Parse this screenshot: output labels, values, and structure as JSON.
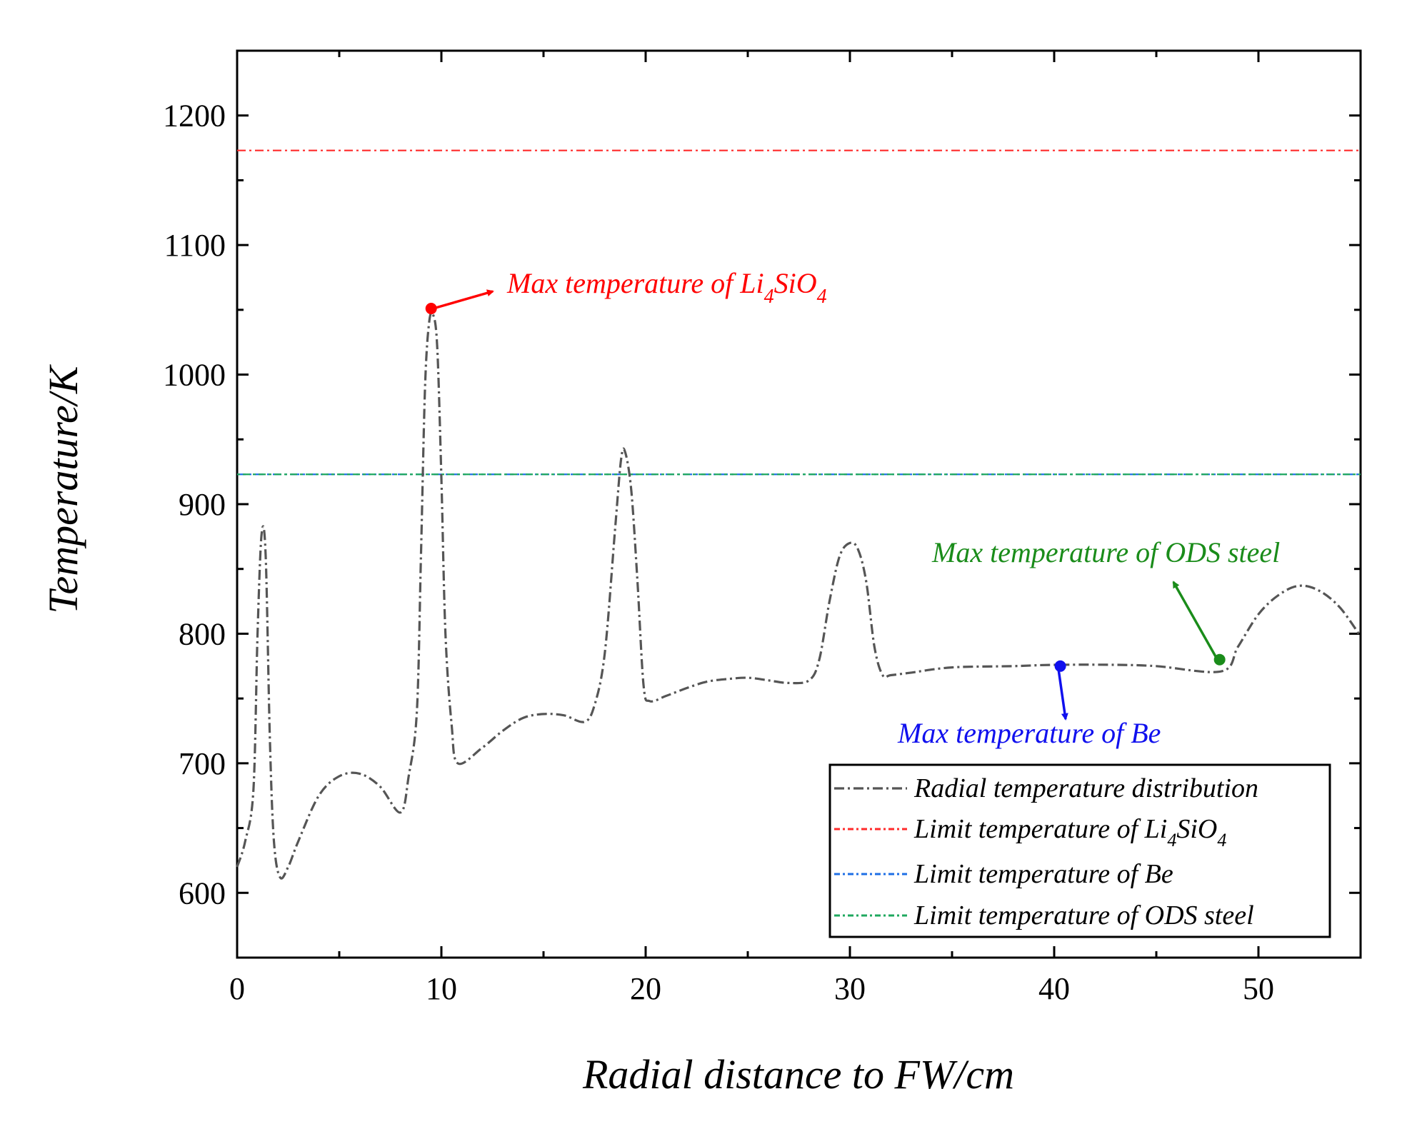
{
  "chart_data": {
    "type": "line",
    "xlabel": "Radial distance to FW/cm",
    "ylabel": "Temperature/K",
    "xlim": [
      0,
      55
    ],
    "ylim": [
      550,
      1250
    ],
    "xticks": [
      0,
      10,
      20,
      30,
      40,
      50
    ],
    "yticks": [
      600,
      700,
      800,
      900,
      1000,
      1100,
      1200
    ],
    "grid": false,
    "legend_position": "bottom-right",
    "series": [
      {
        "name": "Radial temperature distribution",
        "color": "#555555",
        "style": "dash-dot",
        "x": [
          0,
          0.4,
          0.8,
          1.0,
          1.2,
          1.4,
          1.6,
          1.8,
          2.1,
          2.5,
          3,
          4,
          5,
          6,
          7,
          8,
          8.4,
          8.8,
          9.0,
          9.2,
          9.4,
          9.6,
          9.8,
          10.0,
          10.2,
          10.5,
          10.8,
          12,
          13,
          14,
          15,
          16,
          17,
          17.5,
          18,
          18.5,
          18.8,
          19.0,
          19.3,
          19.6,
          19.9,
          20.2,
          21,
          22,
          23,
          24,
          25,
          26,
          27,
          28,
          28.5,
          29,
          29.5,
          30,
          30.4,
          30.8,
          31.2,
          31.6,
          32,
          33,
          35,
          38,
          40,
          43,
          45,
          48.2,
          49,
          50,
          51,
          52,
          53,
          54,
          55
        ],
        "values": [
          620,
          640,
          680,
          800,
          877,
          860,
          720,
          640,
          612,
          620,
          640,
          675,
          690,
          692,
          682,
          662,
          690,
          740,
          860,
          990,
          1040,
          1046,
          1020,
          920,
          800,
          730,
          700,
          712,
          725,
          735,
          738,
          737,
          732,
          745,
          785,
          880,
          935,
          940,
          910,
          840,
          760,
          748,
          752,
          758,
          763,
          765,
          766,
          764,
          762,
          764,
          780,
          825,
          860,
          870,
          865,
          840,
          790,
          768,
          768,
          770,
          774,
          775,
          776,
          776,
          775,
          771,
          790,
          815,
          830,
          837,
          833,
          820,
          798
        ]
      },
      {
        "name": "Limit temperature of Li4SiO4",
        "color": "#ff2a2a",
        "style": "dash-dot",
        "y": 1173
      },
      {
        "name": "Limit temperature of Be",
        "color": "#1e6fe6",
        "style": "dash-dot",
        "y": 923
      },
      {
        "name": "Limit temperature of ODS steel",
        "color": "#1fa85f",
        "style": "dash-dot",
        "y": 923
      }
    ],
    "markers": [
      {
        "name": "li4sio4-max",
        "x": 9.5,
        "y": 1051,
        "color": "#ff0000"
      },
      {
        "name": "be-max",
        "x": 40.3,
        "y": 775,
        "color": "#1010ee"
      },
      {
        "name": "ods-max",
        "x": 48.1,
        "y": 780,
        "color": "#1a8c1a"
      }
    ],
    "annotations": [
      {
        "name": "li4sio4",
        "text_main": "Max temperature of Li",
        "sub1": "4",
        "mid": "SiO",
        "sub2": "4",
        "color": "#ff0000"
      },
      {
        "name": "be",
        "text": "Max temperature of Be",
        "color": "#1010ee"
      },
      {
        "name": "ods",
        "text": "Max temperature of ODS steel",
        "color": "#1a8c1a"
      }
    ],
    "legend": [
      {
        "label": "Radial temperature distribution",
        "color": "#555555"
      },
      {
        "label_main": "Limit temperature of Li",
        "sub1": "4",
        "mid": "SiO",
        "sub2": "4",
        "color": "#ff2a2a"
      },
      {
        "label": "Limit temperature of Be",
        "color": "#1e6fe6"
      },
      {
        "label": "Limit temperature of ODS steel",
        "color": "#1fa85f"
      }
    ]
  }
}
